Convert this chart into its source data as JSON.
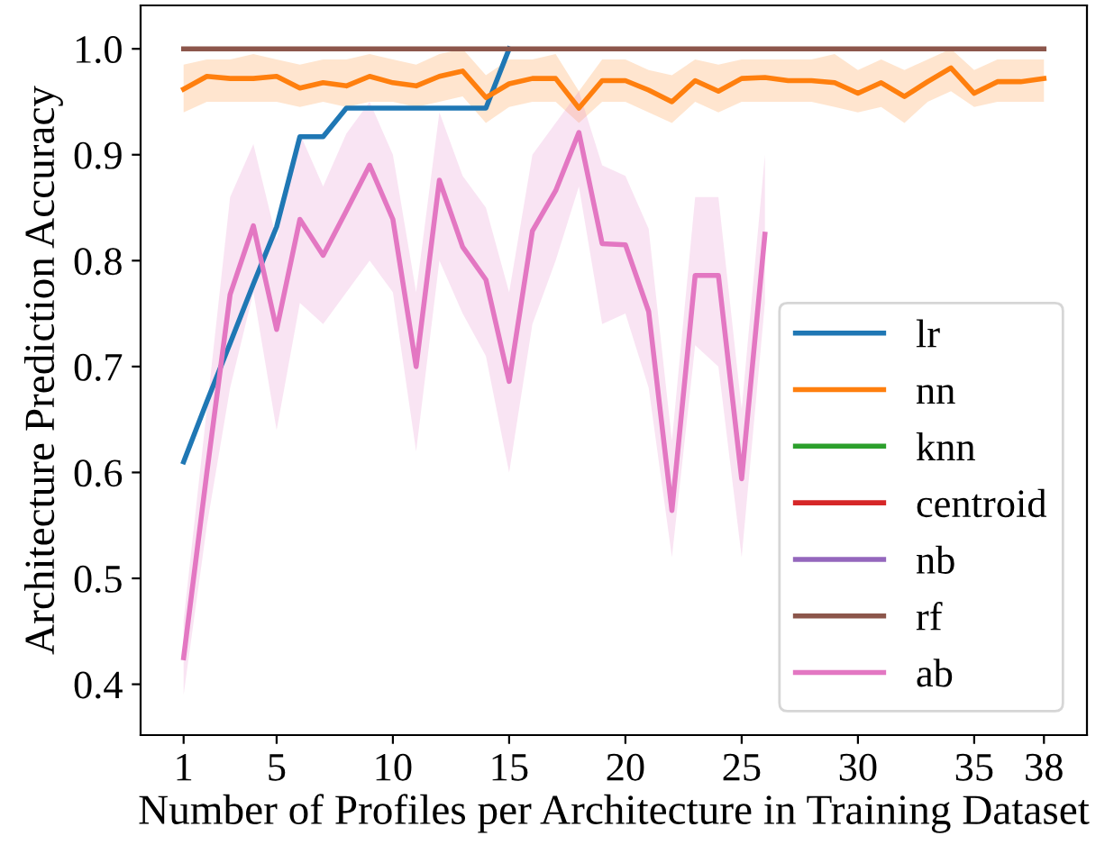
{
  "chart_data": {
    "type": "line",
    "xlabel": "Number of Profiles per Architecture in Training Dataset",
    "ylabel": "Architecture Prediction Accuracy",
    "x": [
      1,
      2,
      3,
      4,
      5,
      6,
      7,
      8,
      9,
      10,
      11,
      12,
      13,
      14,
      15,
      16,
      17,
      18,
      19,
      20,
      21,
      22,
      23,
      24,
      25,
      26,
      27,
      28,
      29,
      30,
      31,
      32,
      33,
      34,
      35,
      36,
      37,
      38
    ],
    "xlim": [
      -0.85,
      39.85
    ],
    "xticks": [
      1,
      5,
      10,
      15,
      20,
      25,
      30,
      35,
      38
    ],
    "ylim": [
      0.352,
      1.041
    ],
    "yticks": [
      0.4,
      0.5,
      0.6,
      0.7,
      0.8,
      0.9,
      {
        "value": 1,
        "label": "1.0"
      }
    ],
    "grid": false,
    "legend": "lower right",
    "marker": "none",
    "line_style": "solid",
    "series": [
      {
        "name": "lr",
        "color": "#1f77b4",
        "values": [
          0.61,
          0.667,
          0.722,
          0.778,
          0.832,
          0.917,
          0.917,
          0.944,
          0.944,
          0.944,
          0.944,
          0.944,
          0.944,
          0.944,
          1.0,
          null,
          null,
          null,
          null,
          null,
          null,
          null,
          null,
          null,
          null,
          null,
          null,
          null,
          null,
          null,
          null,
          null,
          null,
          null,
          null,
          null,
          null,
          null
        ]
      },
      {
        "name": "nn",
        "color": "#ff7f0e",
        "values": [
          0.962,
          0.974,
          0.972,
          0.972,
          0.974,
          0.963,
          0.968,
          0.965,
          0.974,
          0.968,
          0.965,
          0.974,
          0.979,
          0.954,
          0.967,
          0.972,
          0.972,
          0.944,
          0.97,
          0.97,
          0.961,
          0.95,
          0.97,
          0.96,
          0.972,
          0.973,
          0.97,
          0.97,
          0.968,
          0.958,
          0.968,
          0.955,
          0.969,
          0.982,
          0.958,
          0.969,
          0.969,
          0.972
        ],
        "lower": [
          0.94,
          0.95,
          0.95,
          0.95,
          0.95,
          0.945,
          0.95,
          0.945,
          0.95,
          0.95,
          0.945,
          0.95,
          0.955,
          0.93,
          0.945,
          0.95,
          0.95,
          0.93,
          0.95,
          0.95,
          0.94,
          0.93,
          0.95,
          0.94,
          0.95,
          0.95,
          0.95,
          0.95,
          0.945,
          0.94,
          0.945,
          0.93,
          0.95,
          0.96,
          0.945,
          0.95,
          0.95,
          0.95
        ],
        "upper": [
          0.985,
          0.99,
          0.99,
          0.995,
          0.99,
          0.985,
          0.99,
          0.99,
          0.995,
          0.99,
          0.985,
          0.995,
          1.0,
          0.975,
          0.99,
          0.99,
          0.995,
          0.96,
          0.99,
          0.99,
          0.98,
          0.975,
          0.99,
          0.985,
          0.99,
          0.99,
          0.99,
          0.99,
          0.995,
          0.98,
          0.99,
          0.98,
          0.99,
          1.0,
          0.98,
          0.99,
          0.99,
          0.99
        ]
      },
      {
        "name": "knn",
        "color": "#2ca02c",
        "values": [
          null,
          null,
          null,
          null,
          null,
          null,
          null,
          null,
          null,
          null,
          null,
          null,
          null,
          null,
          null,
          null,
          null,
          null,
          null,
          null,
          null,
          null,
          null,
          null,
          null,
          null,
          null,
          null,
          null,
          null,
          null,
          null,
          null,
          null,
          null,
          null,
          null,
          null
        ]
      },
      {
        "name": "centroid",
        "color": "#d62728",
        "values": [
          null,
          null,
          null,
          null,
          null,
          null,
          null,
          null,
          null,
          null,
          null,
          null,
          null,
          null,
          null,
          null,
          null,
          null,
          null,
          null,
          null,
          null,
          null,
          null,
          null,
          null,
          null,
          null,
          null,
          null,
          null,
          null,
          null,
          null,
          null,
          null,
          null,
          null
        ]
      },
      {
        "name": "nb",
        "color": "#9467bd",
        "values": [
          null,
          null,
          null,
          null,
          null,
          null,
          null,
          null,
          null,
          null,
          null,
          null,
          null,
          null,
          null,
          null,
          null,
          null,
          null,
          null,
          null,
          null,
          null,
          null,
          null,
          null,
          null,
          null,
          null,
          null,
          null,
          null,
          null,
          null,
          null,
          null,
          null,
          null
        ]
      },
      {
        "name": "rf",
        "color": "#8c564b",
        "values": [
          1.0,
          1.0,
          1.0,
          1.0,
          1.0,
          1.0,
          1.0,
          1.0,
          1.0,
          1.0,
          1.0,
          1.0,
          1.0,
          1.0,
          1.0,
          1.0,
          1.0,
          1.0,
          1.0,
          1.0,
          1.0,
          1.0,
          1.0,
          1.0,
          1.0,
          1.0,
          1.0,
          1.0,
          1.0,
          1.0,
          1.0,
          1.0,
          1.0,
          1.0,
          1.0,
          1.0,
          1.0,
          1.0
        ]
      },
      {
        "name": "ab",
        "color": "#e377c2",
        "values": [
          0.425,
          0.6,
          0.768,
          0.833,
          0.735,
          0.839,
          0.805,
          0.847,
          0.89,
          0.839,
          0.7,
          0.876,
          0.813,
          0.782,
          0.686,
          0.828,
          0.866,
          0.921,
          0.816,
          0.815,
          0.752,
          0.564,
          0.786,
          0.786,
          0.594,
          0.825,
          null,
          null,
          null,
          null,
          null,
          null,
          null,
          null,
          null,
          null,
          null,
          null
        ],
        "lower": [
          0.39,
          0.55,
          0.68,
          0.77,
          0.64,
          0.76,
          0.74,
          0.77,
          0.8,
          0.77,
          0.62,
          0.8,
          0.75,
          0.71,
          0.6,
          0.74,
          0.8,
          0.87,
          0.74,
          0.75,
          0.68,
          0.52,
          0.72,
          0.7,
          0.52,
          0.76,
          null,
          null,
          null,
          null,
          null,
          null,
          null,
          null,
          null,
          null,
          null,
          null
        ],
        "upper": [
          0.46,
          0.66,
          0.86,
          0.91,
          0.82,
          0.92,
          0.87,
          0.92,
          0.95,
          0.9,
          0.77,
          0.94,
          0.88,
          0.85,
          0.77,
          0.9,
          0.93,
          0.96,
          0.89,
          0.88,
          0.83,
          0.63,
          0.86,
          0.86,
          0.66,
          0.9,
          null,
          null,
          null,
          null,
          null,
          null,
          null,
          null,
          null,
          null,
          null,
          null
        ]
      }
    ]
  }
}
